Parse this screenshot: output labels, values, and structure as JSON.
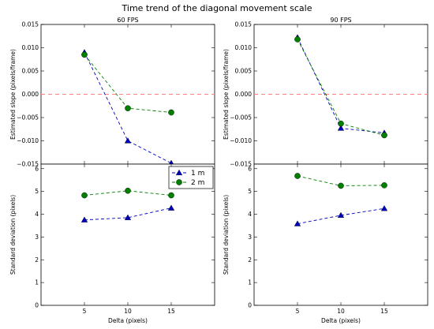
{
  "figure": {
    "title": "Time trend of the diagonal movement scale"
  },
  "colors": {
    "series_1m": "#0000bf",
    "series_2m": "#007f00",
    "zero_line": "#ff8080"
  },
  "chart_data": [
    {
      "id": "slope_60",
      "type": "line",
      "title": "60 FPS",
      "xlabel": "",
      "ylabel": "Estimated slope (pixels/frame)",
      "xlim": [
        0,
        20
      ],
      "ylim": [
        -0.015,
        0.015
      ],
      "yticks": [
        -0.015,
        -0.01,
        -0.005,
        0.0,
        0.005,
        0.01,
        0.015
      ],
      "ytick_labels": [
        "−0.015",
        "−0.010",
        "−0.005",
        "0.000",
        "0.005",
        "0.010",
        "0.015"
      ],
      "x": [
        5,
        10,
        15
      ],
      "reference_line_y": 0,
      "series": [
        {
          "name": "1 m",
          "marker": "triangle",
          "values": [
            0.009,
            -0.01,
            -0.0148
          ]
        },
        {
          "name": "2 m",
          "marker": "circle",
          "values": [
            0.0085,
            -0.003,
            -0.0039
          ]
        }
      ]
    },
    {
      "id": "slope_90",
      "type": "line",
      "title": "90 FPS",
      "xlabel": "",
      "ylabel": "Estimated slope (pixels/frame)",
      "xlim": [
        0,
        20
      ],
      "ylim": [
        -0.015,
        0.015
      ],
      "yticks": [
        -0.015,
        -0.01,
        -0.005,
        0.0,
        0.005,
        0.01,
        0.015
      ],
      "ytick_labels": [
        "−0.015",
        "−0.010",
        "−0.005",
        "0.000",
        "0.005",
        "0.010",
        "0.015"
      ],
      "x": [
        5,
        10,
        15
      ],
      "reference_line_y": 0,
      "series": [
        {
          "name": "1 m",
          "marker": "triangle",
          "values": [
            0.0122,
            -0.0073,
            -0.0083
          ]
        },
        {
          "name": "2 m",
          "marker": "circle",
          "values": [
            0.0118,
            -0.0063,
            -0.0088
          ]
        }
      ]
    },
    {
      "id": "std_60",
      "type": "line",
      "title": "",
      "xlabel": "Delta (pixels)",
      "ylabel": "Standard deviation (pixels)",
      "xlim": [
        0,
        20
      ],
      "ylim": [
        0,
        6.2
      ],
      "yticks": [
        0,
        1,
        2,
        3,
        4,
        5,
        6
      ],
      "ytick_labels": [
        "0",
        "1",
        "2",
        "3",
        "4",
        "5",
        "6"
      ],
      "x": [
        5,
        10,
        15
      ],
      "xtick_labels": [
        "5",
        "10",
        "15"
      ],
      "legend": "top-right",
      "series": [
        {
          "name": "1 m",
          "marker": "triangle",
          "values": [
            3.75,
            3.85,
            4.27
          ]
        },
        {
          "name": "2 m",
          "marker": "circle",
          "values": [
            4.83,
            5.03,
            4.83
          ]
        }
      ]
    },
    {
      "id": "std_90",
      "type": "line",
      "title": "",
      "xlabel": "Delta (pixels)",
      "ylabel": "Standard deviation (pixels)",
      "xlim": [
        0,
        20
      ],
      "ylim": [
        0,
        6.2
      ],
      "yticks": [
        0,
        1,
        2,
        3,
        4,
        5,
        6
      ],
      "ytick_labels": [
        "0",
        "1",
        "2",
        "3",
        "4",
        "5",
        "6"
      ],
      "x": [
        5,
        10,
        15
      ],
      "xtick_labels": [
        "5",
        "10",
        "15"
      ],
      "series": [
        {
          "name": "1 m",
          "marker": "triangle",
          "values": [
            3.58,
            3.95,
            4.25
          ]
        },
        {
          "name": "2 m",
          "marker": "circle",
          "values": [
            5.68,
            5.25,
            5.27
          ]
        }
      ]
    }
  ]
}
